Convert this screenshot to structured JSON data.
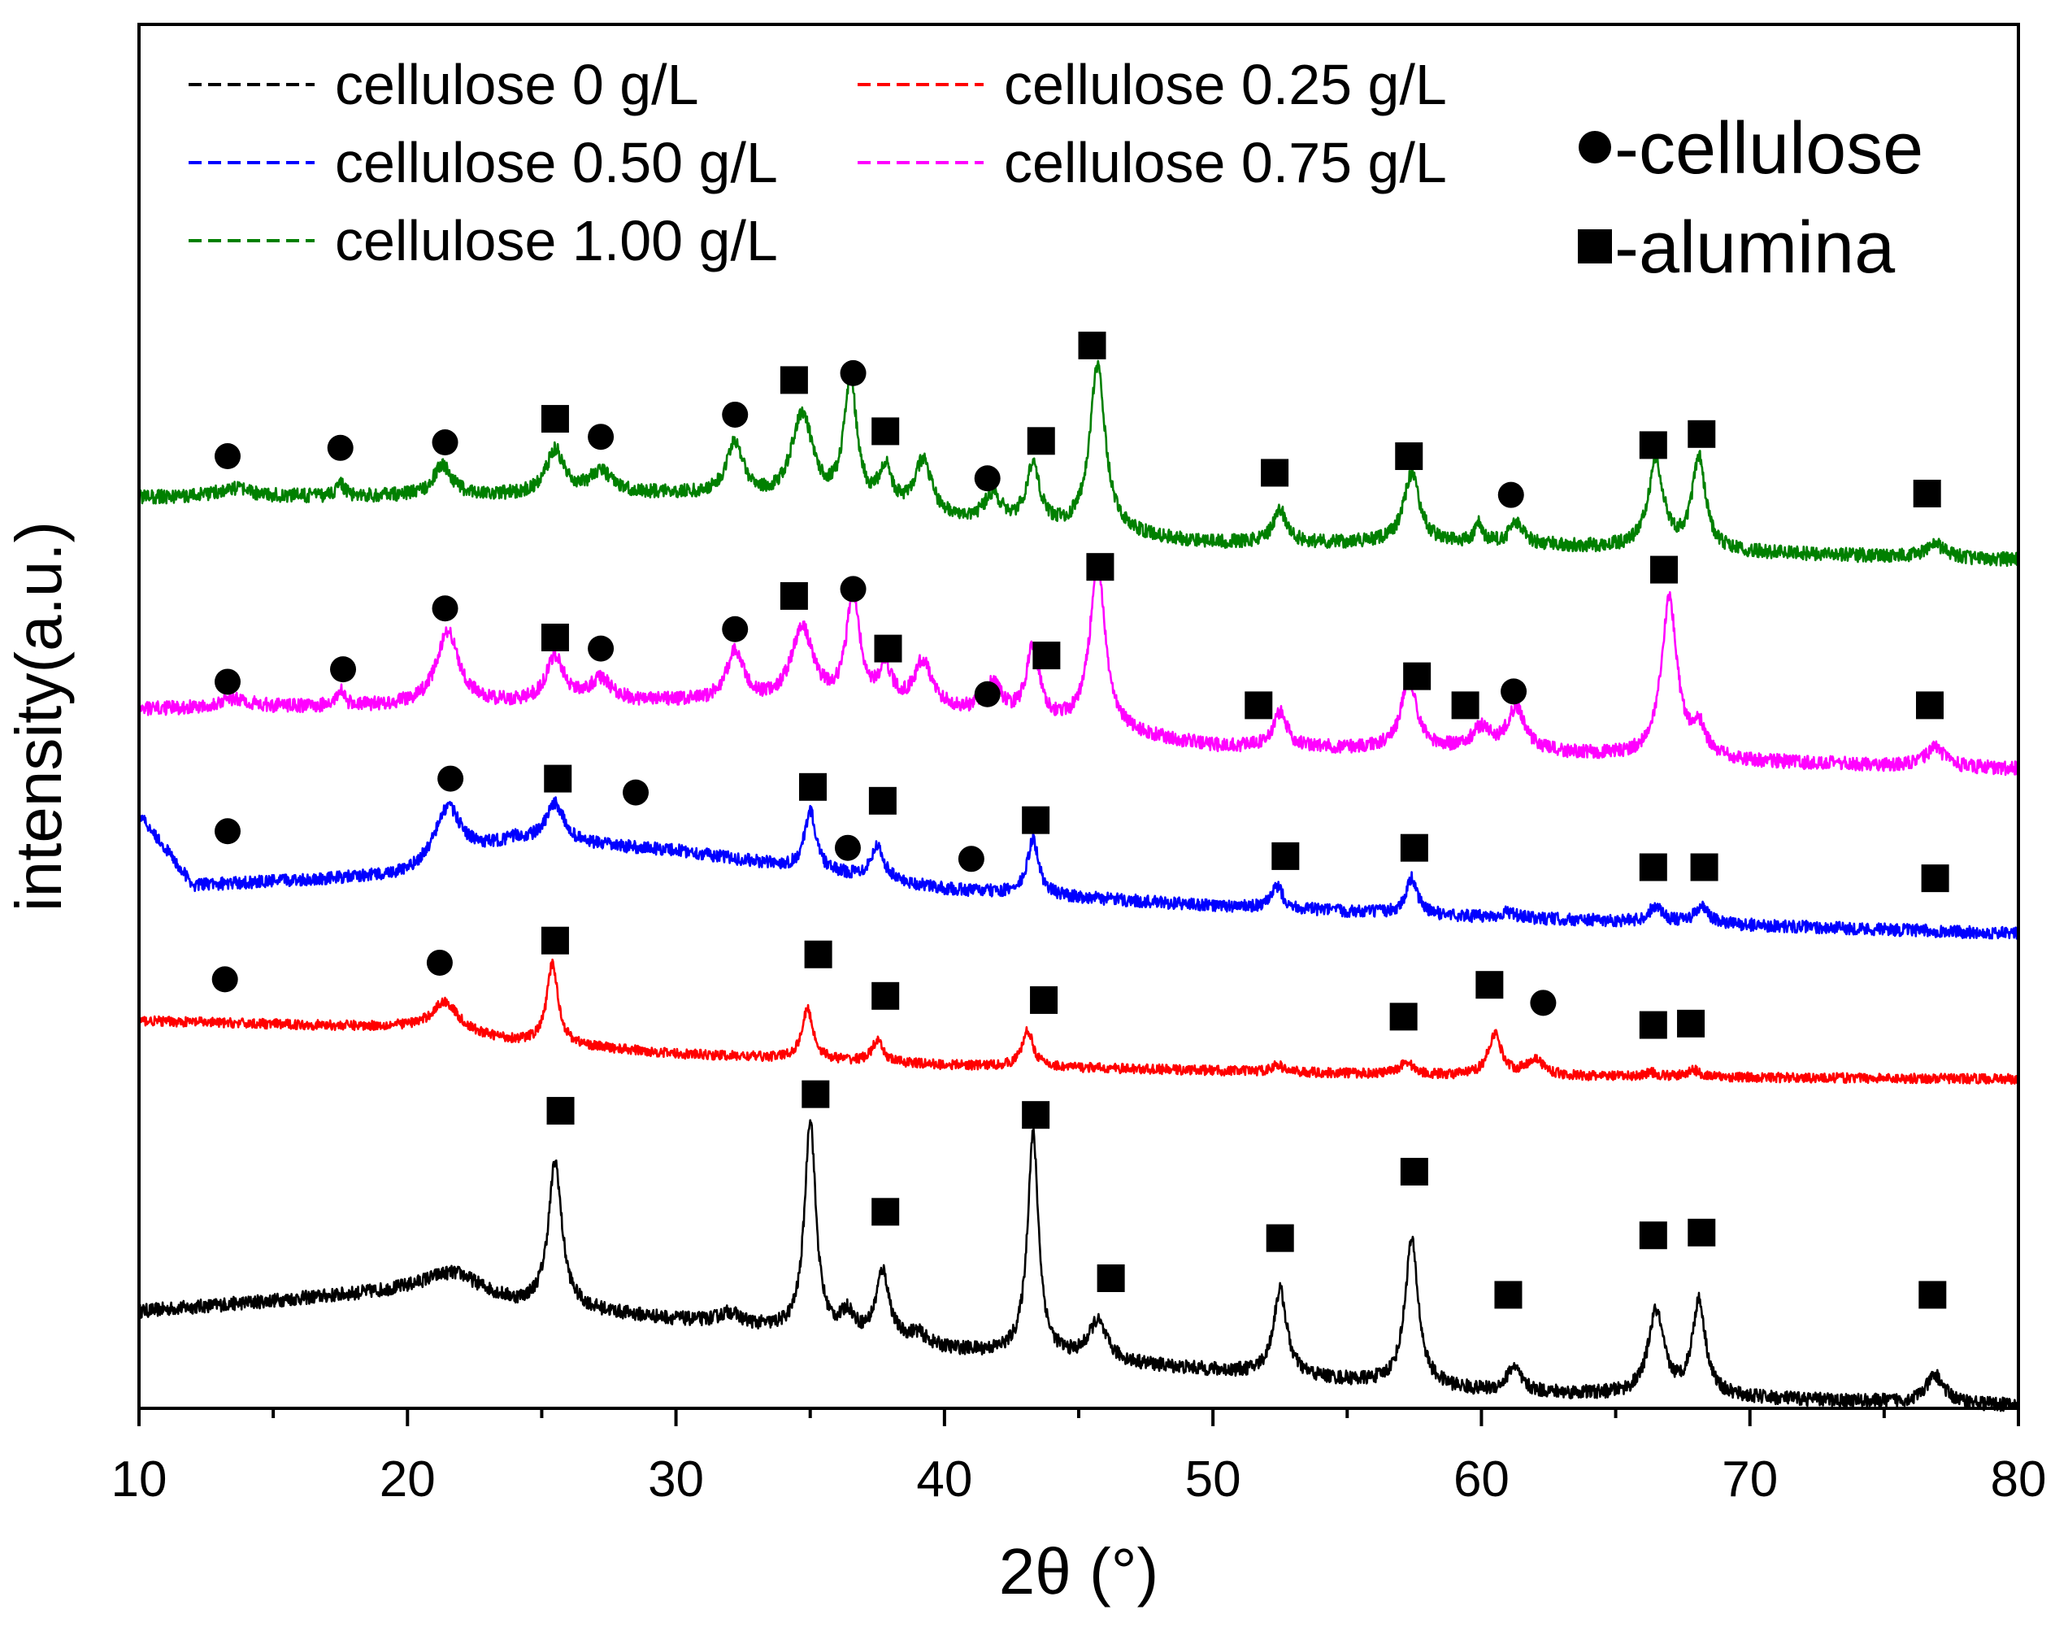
{
  "chart_data": {
    "type": "line",
    "xlabel": "2θ (°)",
    "ylabel": "intensity(a.u.)",
    "xlim": [
      10,
      80
    ],
    "ylim": [
      0,
      100
    ],
    "xticks": [
      10,
      20,
      30,
      40,
      50,
      60,
      70,
      80
    ],
    "xticks_minor_step": 5,
    "yticks": [],
    "grid": false,
    "legend": {
      "placement": "top-left",
      "entries": [
        "cellulose 0 g/L",
        "cellulose 0.25 g/L",
        "cellulose 0.50 g/L",
        "cellulose 0.75 g/L",
        "cellulose 1.00 g/L"
      ]
    },
    "marker_legend": {
      "placement": "top-right",
      "entries": [
        {
          "symbol": "circle",
          "label": "-cellulose"
        },
        {
          "symbol": "square",
          "label": "-alumina"
        }
      ]
    },
    "series": [
      {
        "name": "cellulose 0 g/L",
        "color": "#000000",
        "baseline": [
          [
            10,
            7.0
          ],
          [
            22,
            8.8
          ],
          [
            24,
            7.5
          ],
          [
            32,
            6.0
          ],
          [
            40,
            4.2
          ],
          [
            48,
            3.0
          ],
          [
            60,
            1.2
          ],
          [
            80,
            0.2
          ]
        ],
        "noise": 0.5,
        "peaks": [
          [
            21.5,
            1.0,
            1.2
          ],
          [
            25.5,
            10.5,
            0.3
          ],
          [
            32,
            0.8,
            0.5
          ],
          [
            35.0,
            15.5,
            0.25
          ],
          [
            36.4,
            1.6,
            0.3
          ],
          [
            37.7,
            5.0,
            0.3
          ],
          [
            39,
            0.8,
            0.4
          ],
          [
            43.3,
            16.0,
            0.25
          ],
          [
            45.7,
            2.8,
            0.4
          ],
          [
            52.5,
            6.2,
            0.3
          ],
          [
            57.4,
            10.5,
            0.3
          ],
          [
            61.2,
            1.8,
            0.3
          ],
          [
            66.5,
            6.0,
            0.35
          ],
          [
            68.1,
            6.8,
            0.3
          ],
          [
            76.9,
            2.0,
            0.4
          ]
        ],
        "markers": [
          {
            "x": 25.7,
            "y": 21.5,
            "symbol": "square"
          },
          {
            "x": 35.2,
            "y": 22.7,
            "symbol": "square"
          },
          {
            "x": 37.8,
            "y": 14.2,
            "symbol": "square"
          },
          {
            "x": 43.4,
            "y": 21.2,
            "symbol": "square"
          },
          {
            "x": 46.2,
            "y": 9.4,
            "symbol": "square"
          },
          {
            "x": 52.5,
            "y": 12.3,
            "symbol": "square"
          },
          {
            "x": 57.5,
            "y": 17.1,
            "symbol": "square"
          },
          {
            "x": 61.0,
            "y": 8.2,
            "symbol": "square"
          },
          {
            "x": 66.4,
            "y": 12.5,
            "symbol": "square"
          },
          {
            "x": 68.2,
            "y": 12.7,
            "symbol": "square"
          },
          {
            "x": 76.8,
            "y": 8.2,
            "symbol": "square"
          }
        ]
      },
      {
        "name": "cellulose 0.25 g/L",
        "color": "#ff0000",
        "baseline": [
          [
            10,
            28.0
          ],
          [
            20,
            27.5
          ],
          [
            24,
            26.5
          ],
          [
            30,
            25.6
          ],
          [
            40,
            24.8
          ],
          [
            50,
            24.4
          ],
          [
            60,
            24.0
          ],
          [
            80,
            23.8
          ]
        ],
        "noise": 0.35,
        "peaks": [
          [
            21.4,
            2.2,
            0.6
          ],
          [
            25.4,
            5.8,
            0.25
          ],
          [
            34.9,
            3.6,
            0.25
          ],
          [
            37.5,
            1.5,
            0.25
          ],
          [
            43.1,
            2.6,
            0.25
          ],
          [
            52.4,
            0.5,
            0.25
          ],
          [
            57.2,
            0.9,
            0.3
          ],
          [
            60.5,
            3.0,
            0.3
          ],
          [
            62.0,
            1.2,
            0.4
          ],
          [
            66.3,
            0.3,
            0.3
          ],
          [
            67.9,
            0.5,
            0.3
          ]
        ],
        "markers": [
          {
            "x": 13.2,
            "y": 31.0,
            "symbol": "circle"
          },
          {
            "x": 21.2,
            "y": 32.2,
            "symbol": "circle"
          },
          {
            "x": 25.5,
            "y": 33.8,
            "symbol": "square"
          },
          {
            "x": 35.3,
            "y": 32.8,
            "symbol": "square"
          },
          {
            "x": 37.8,
            "y": 29.8,
            "symbol": "square"
          },
          {
            "x": 43.7,
            "y": 29.5,
            "symbol": "square"
          },
          {
            "x": 57.1,
            "y": 28.3,
            "symbol": "square"
          },
          {
            "x": 60.3,
            "y": 30.6,
            "symbol": "square"
          },
          {
            "x": 62.3,
            "y": 29.3,
            "symbol": "circle"
          },
          {
            "x": 66.4,
            "y": 27.7,
            "symbol": "square"
          },
          {
            "x": 67.8,
            "y": 27.8,
            "symbol": "square"
          }
        ]
      },
      {
        "name": "cellulose 0.50 g/L",
        "color": "#0000ff",
        "baseline": [
          [
            10,
            43.0
          ],
          [
            12,
            37.8
          ],
          [
            20,
            38.5
          ],
          [
            24,
            41.0
          ],
          [
            30,
            40.3
          ],
          [
            36,
            38.6
          ],
          [
            40,
            37.5
          ],
          [
            50,
            36.3
          ],
          [
            60,
            35.5
          ],
          [
            80,
            34.3
          ]
        ],
        "noise": 0.45,
        "peaks": [
          [
            21.5,
            4.0,
            0.6
          ],
          [
            25.5,
            2.8,
            0.4
          ],
          [
            35.0,
            4.3,
            0.25
          ],
          [
            37.5,
            2.4,
            0.3
          ],
          [
            43.3,
            4.0,
            0.25
          ],
          [
            52.4,
            1.6,
            0.25
          ],
          [
            57.4,
            2.6,
            0.25
          ],
          [
            61,
            0.4,
            0.3
          ],
          [
            66.5,
            1.2,
            0.3
          ],
          [
            68.2,
            1.2,
            0.3
          ]
        ],
        "markers": [
          {
            "x": 13.3,
            "y": 41.7,
            "symbol": "circle"
          },
          {
            "x": 21.6,
            "y": 45.5,
            "symbol": "circle"
          },
          {
            "x": 25.6,
            "y": 45.5,
            "symbol": "square"
          },
          {
            "x": 28.5,
            "y": 44.5,
            "symbol": "circle"
          },
          {
            "x": 35.1,
            "y": 44.9,
            "symbol": "square"
          },
          {
            "x": 36.4,
            "y": 40.5,
            "symbol": "circle"
          },
          {
            "x": 37.7,
            "y": 43.9,
            "symbol": "square"
          },
          {
            "x": 41.0,
            "y": 39.7,
            "symbol": "circle"
          },
          {
            "x": 43.4,
            "y": 42.5,
            "symbol": "square"
          },
          {
            "x": 52.7,
            "y": 39.9,
            "symbol": "square"
          },
          {
            "x": 57.5,
            "y": 40.5,
            "symbol": "square"
          },
          {
            "x": 66.4,
            "y": 39.1,
            "symbol": "square"
          },
          {
            "x": 68.3,
            "y": 39.1,
            "symbol": "square"
          },
          {
            "x": 76.9,
            "y": 38.3,
            "symbol": "square"
          }
        ]
      },
      {
        "name": "cellulose 0.75 g/L",
        "color": "#ff00ff",
        "baseline": [
          [
            10,
            50.5
          ],
          [
            30,
            51.0
          ],
          [
            40,
            50.3
          ],
          [
            50,
            47.8
          ],
          [
            60,
            47.5
          ],
          [
            70,
            46.7
          ],
          [
            80,
            46.2
          ]
        ],
        "noise": 0.5,
        "peaks": [
          [
            13.5,
            0.6,
            0.8
          ],
          [
            17.5,
            1.2,
            0.15
          ],
          [
            21.5,
            5.3,
            0.5
          ],
          [
            25.5,
            3.3,
            0.4
          ],
          [
            27.2,
            1.6,
            0.5
          ],
          [
            32.2,
            3.6,
            0.4
          ],
          [
            34.7,
            5.5,
            0.5
          ],
          [
            36.6,
            8.0,
            0.3
          ],
          [
            37.8,
            2.6,
            0.3
          ],
          [
            39.2,
            3.4,
            0.4
          ],
          [
            41.8,
            2.2,
            0.4
          ],
          [
            43.3,
            5.3,
            0.3
          ],
          [
            45.7,
            11.8,
            0.35
          ],
          [
            52.5,
            2.5,
            0.3
          ],
          [
            57.3,
            5.0,
            0.35
          ],
          [
            60.0,
            1.5,
            0.4
          ],
          [
            61.3,
            3.1,
            0.4
          ],
          [
            67.0,
            11.5,
            0.35
          ],
          [
            68.1,
            2.0,
            0.3
          ],
          [
            76.9,
            1.4,
            0.4
          ]
        ],
        "markers": [
          {
            "x": 13.3,
            "y": 52.5,
            "symbol": "circle"
          },
          {
            "x": 17.6,
            "y": 53.4,
            "symbol": "circle"
          },
          {
            "x": 21.4,
            "y": 57.8,
            "symbol": "circle"
          },
          {
            "x": 25.5,
            "y": 55.7,
            "symbol": "square"
          },
          {
            "x": 27.2,
            "y": 54.9,
            "symbol": "circle"
          },
          {
            "x": 32.2,
            "y": 56.3,
            "symbol": "circle"
          },
          {
            "x": 34.4,
            "y": 58.7,
            "symbol": "square"
          },
          {
            "x": 36.6,
            "y": 59.2,
            "symbol": "circle"
          },
          {
            "x": 37.9,
            "y": 54.9,
            "symbol": "square"
          },
          {
            "x": 41.6,
            "y": 51.6,
            "symbol": "circle"
          },
          {
            "x": 43.8,
            "y": 54.4,
            "symbol": "square"
          },
          {
            "x": 45.8,
            "y": 60.8,
            "symbol": "square"
          },
          {
            "x": 51.7,
            "y": 50.8,
            "symbol": "square"
          },
          {
            "x": 57.6,
            "y": 52.9,
            "symbol": "square"
          },
          {
            "x": 59.4,
            "y": 50.8,
            "symbol": "square"
          },
          {
            "x": 61.2,
            "y": 51.8,
            "symbol": "circle"
          },
          {
            "x": 66.8,
            "y": 60.6,
            "symbol": "square"
          },
          {
            "x": 76.7,
            "y": 50.8,
            "symbol": "square"
          }
        ]
      },
      {
        "name": "cellulose 1.00 g/L",
        "color": "#008000",
        "baseline": [
          [
            10,
            65.8
          ],
          [
            30,
            66.0
          ],
          [
            40,
            64.0
          ],
          [
            50,
            62.5
          ],
          [
            60,
            62.5
          ],
          [
            70,
            61.8
          ],
          [
            80,
            61.3
          ]
        ],
        "noise": 0.5,
        "peaks": [
          [
            13.5,
            0.6,
            0.8
          ],
          [
            17.5,
            1.0,
            0.15
          ],
          [
            21.3,
            2.2,
            0.4
          ],
          [
            25.5,
            3.2,
            0.4
          ],
          [
            27.2,
            1.6,
            0.5
          ],
          [
            32.2,
            4.0,
            0.4
          ],
          [
            34.7,
            6.5,
            0.5
          ],
          [
            36.5,
            9.0,
            0.3
          ],
          [
            37.8,
            3.0,
            0.3
          ],
          [
            39.2,
            4.0,
            0.4
          ],
          [
            41.8,
            2.0,
            0.4
          ],
          [
            43.3,
            4.5,
            0.3
          ],
          [
            45.7,
            12.0,
            0.35
          ],
          [
            52.5,
            2.3,
            0.3
          ],
          [
            57.4,
            5.0,
            0.35
          ],
          [
            59.9,
            1.3,
            0.15
          ],
          [
            61.3,
            1.5,
            0.3
          ],
          [
            66.5,
            6.2,
            0.35
          ],
          [
            68.1,
            6.6,
            0.3
          ],
          [
            76.9,
            1.0,
            0.4
          ]
        ],
        "markers": [
          {
            "x": 13.3,
            "y": 68.8,
            "symbol": "circle"
          },
          {
            "x": 17.5,
            "y": 69.4,
            "symbol": "circle"
          },
          {
            "x": 21.4,
            "y": 69.8,
            "symbol": "circle"
          },
          {
            "x": 25.5,
            "y": 71.5,
            "symbol": "square"
          },
          {
            "x": 27.2,
            "y": 70.2,
            "symbol": "circle"
          },
          {
            "x": 32.2,
            "y": 71.8,
            "symbol": "circle"
          },
          {
            "x": 34.4,
            "y": 74.3,
            "symbol": "square"
          },
          {
            "x": 36.6,
            "y": 74.8,
            "symbol": "circle"
          },
          {
            "x": 37.8,
            "y": 70.6,
            "symbol": "square"
          },
          {
            "x": 41.6,
            "y": 67.2,
            "symbol": "circle"
          },
          {
            "x": 43.6,
            "y": 69.9,
            "symbol": "square"
          },
          {
            "x": 45.5,
            "y": 76.8,
            "symbol": "square"
          },
          {
            "x": 52.3,
            "y": 67.6,
            "symbol": "square"
          },
          {
            "x": 57.3,
            "y": 68.8,
            "symbol": "square"
          },
          {
            "x": 61.1,
            "y": 66.0,
            "symbol": "circle"
          },
          {
            "x": 66.4,
            "y": 69.6,
            "symbol": "square"
          },
          {
            "x": 68.2,
            "y": 70.4,
            "symbol": "square"
          },
          {
            "x": 76.6,
            "y": 66.1,
            "symbol": "square"
          }
        ]
      }
    ]
  }
}
